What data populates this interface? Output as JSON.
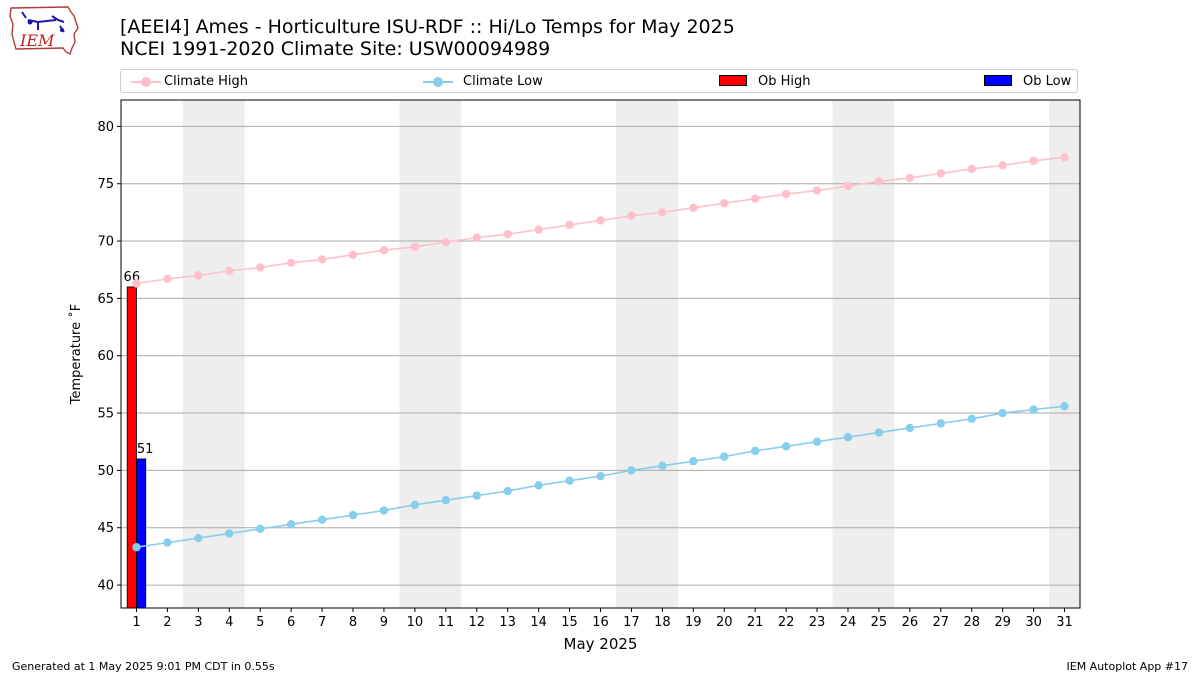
{
  "logo": {
    "text": "IEM",
    "icon": "iowa-state-outline-logo-icon"
  },
  "header": {
    "title_line1": "[AEEI4] Ames - Horticulture ISU-RDF :: Hi/Lo Temps for May 2025",
    "title_line2": "NCEI 1991-2020 Climate Site: USW00094989"
  },
  "legend": {
    "climate_high": "Climate High",
    "climate_low": "Climate Low",
    "ob_high": "Ob High",
    "ob_low": "Ob Low"
  },
  "colors": {
    "climate_high": "#ffc0cb",
    "climate_low": "#87ceeb",
    "ob_high": "#ff0000",
    "ob_low": "#0000ff",
    "weekend_band": "#eeeeee",
    "grid": "#aaaaaa"
  },
  "chart_data": {
    "type": "bar",
    "xlabel": "May 2025",
    "ylabel": "Temperature ˚F",
    "xlim": [
      0.5,
      31.5
    ],
    "ylim": [
      38,
      82.3
    ],
    "yticks": [
      40,
      45,
      50,
      55,
      60,
      65,
      70,
      75,
      80
    ],
    "days": [
      1,
      2,
      3,
      4,
      5,
      6,
      7,
      8,
      9,
      10,
      11,
      12,
      13,
      14,
      15,
      16,
      17,
      18,
      19,
      20,
      21,
      22,
      23,
      24,
      25,
      26,
      27,
      28,
      29,
      30,
      31
    ],
    "weekend_bands": [
      [
        3,
        4
      ],
      [
        10,
        11
      ],
      [
        17,
        18
      ],
      [
        24,
        25
      ],
      [
        31,
        31
      ]
    ],
    "grid": "horizontal",
    "legend_position": "top",
    "series": [
      {
        "name": "Climate High",
        "kind": "line",
        "values": [
          66.3,
          66.7,
          67.0,
          67.4,
          67.7,
          68.1,
          68.4,
          68.8,
          69.2,
          69.5,
          69.9,
          70.3,
          70.6,
          71.0,
          71.4,
          71.8,
          72.2,
          72.5,
          72.9,
          73.3,
          73.7,
          74.1,
          74.4,
          74.8,
          75.2,
          75.5,
          75.9,
          76.3,
          76.6,
          77.0,
          77.3
        ]
      },
      {
        "name": "Climate Low",
        "kind": "line",
        "values": [
          43.3,
          43.7,
          44.1,
          44.5,
          44.9,
          45.3,
          45.7,
          46.1,
          46.5,
          47.0,
          47.4,
          47.8,
          48.2,
          48.7,
          49.1,
          49.5,
          50.0,
          50.4,
          50.8,
          51.2,
          51.7,
          52.1,
          52.5,
          52.9,
          53.3,
          53.7,
          54.1,
          54.5,
          55.0,
          55.3,
          55.6
        ]
      },
      {
        "name": "Ob High",
        "kind": "bar",
        "x": [
          1
        ],
        "values": [
          66
        ],
        "labels": [
          "66"
        ]
      },
      {
        "name": "Ob Low",
        "kind": "bar",
        "x": [
          1
        ],
        "values": [
          51
        ],
        "labels": [
          "51"
        ]
      }
    ]
  },
  "footer": {
    "left": "Generated at 1 May 2025 9:01 PM CDT in 0.55s",
    "right": "IEM Autoplot App #17"
  }
}
